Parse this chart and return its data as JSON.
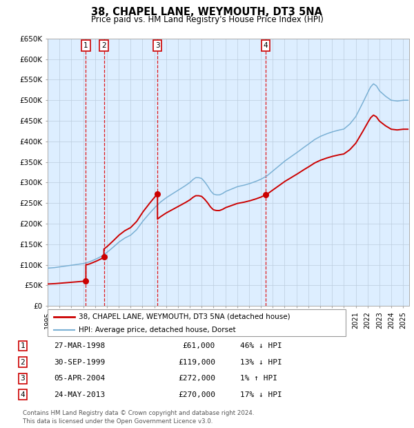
{
  "title": "38, CHAPEL LANE, WEYMOUTH, DT3 5NA",
  "subtitle": "Price paid vs. HM Land Registry's House Price Index (HPI)",
  "legend_label_red": "38, CHAPEL LANE, WEYMOUTH, DT3 5NA (detached house)",
  "legend_label_blue": "HPI: Average price, detached house, Dorset",
  "footer_line1": "Contains HM Land Registry data © Crown copyright and database right 2024.",
  "footer_line2": "This data is licensed under the Open Government Licence v3.0.",
  "sales": [
    {
      "num": 1,
      "date": "27-MAR-1998",
      "price": 61000,
      "pct": "46%",
      "dir": "↓"
    },
    {
      "num": 2,
      "date": "30-SEP-1999",
      "price": 119000,
      "pct": "13%",
      "dir": "↓"
    },
    {
      "num": 3,
      "date": "05-APR-2004",
      "price": 272000,
      "pct": "1%",
      "dir": "↑"
    },
    {
      "num": 4,
      "date": "24-MAY-2013",
      "price": 270000,
      "pct": "17%",
      "dir": "↓"
    }
  ],
  "sale_dates_decimal": [
    1998.23,
    1999.75,
    2004.27,
    2013.39
  ],
  "sale_prices": [
    61000,
    119000,
    272000,
    270000
  ],
  "red_line_color": "#cc0000",
  "blue_line_color": "#7ab0d4",
  "vline_color": "#dd0000",
  "dot_color": "#cc0000",
  "bg_color": "#ddeeff",
  "chart_bg": "#ffffff",
  "grid_color": "#bbccdd",
  "box_color": "#cc0000",
  "ylim": [
    0,
    650000
  ],
  "xlim_start": 1995.0,
  "xlim_end": 2025.5,
  "yticks": [
    0,
    50000,
    100000,
    150000,
    200000,
    250000,
    300000,
    350000,
    400000,
    450000,
    500000,
    550000,
    600000,
    650000
  ],
  "ytick_labels": [
    "£0",
    "£50K",
    "£100K",
    "£150K",
    "£200K",
    "£250K",
    "£300K",
    "£350K",
    "£400K",
    "£450K",
    "£500K",
    "£550K",
    "£600K",
    "£650K"
  ],
  "xticks": [
    1995,
    1996,
    1997,
    1998,
    1999,
    2000,
    2001,
    2002,
    2003,
    2004,
    2005,
    2006,
    2007,
    2008,
    2009,
    2010,
    2011,
    2012,
    2013,
    2014,
    2015,
    2016,
    2017,
    2018,
    2019,
    2020,
    2021,
    2022,
    2023,
    2024,
    2025
  ],
  "hpi_key_years": [
    1995.0,
    1995.5,
    1996.0,
    1996.5,
    1997.0,
    1997.5,
    1998.0,
    1998.5,
    1999.0,
    1999.5,
    2000.0,
    2000.5,
    2001.0,
    2001.5,
    2002.0,
    2002.5,
    2003.0,
    2003.5,
    2004.0,
    2004.5,
    2005.0,
    2005.5,
    2006.0,
    2006.5,
    2007.0,
    2007.25,
    2007.5,
    2007.75,
    2008.0,
    2008.25,
    2008.5,
    2008.75,
    2009.0,
    2009.25,
    2009.5,
    2009.75,
    2010.0,
    2010.5,
    2011.0,
    2011.5,
    2012.0,
    2012.5,
    2013.0,
    2013.5,
    2014.0,
    2014.5,
    2015.0,
    2015.5,
    2016.0,
    2016.5,
    2017.0,
    2017.5,
    2018.0,
    2018.5,
    2019.0,
    2019.5,
    2020.0,
    2020.5,
    2021.0,
    2021.5,
    2022.0,
    2022.25,
    2022.5,
    2022.75,
    2023.0,
    2023.5,
    2024.0,
    2024.5,
    2025.0,
    2025.3
  ],
  "hpi_key_vals": [
    92000,
    93000,
    95000,
    97000,
    99000,
    101000,
    103000,
    107000,
    113000,
    120000,
    130000,
    142000,
    155000,
    165000,
    172000,
    185000,
    205000,
    222000,
    238000,
    252000,
    263000,
    272000,
    281000,
    290000,
    300000,
    307000,
    312000,
    312000,
    310000,
    302000,
    292000,
    280000,
    272000,
    270000,
    270000,
    273000,
    278000,
    284000,
    290000,
    293000,
    297000,
    302000,
    308000,
    316000,
    328000,
    340000,
    352000,
    362000,
    372000,
    383000,
    393000,
    404000,
    412000,
    418000,
    423000,
    427000,
    430000,
    442000,
    460000,
    488000,
    518000,
    532000,
    540000,
    535000,
    523000,
    510000,
    500000,
    498000,
    500000,
    500000
  ]
}
